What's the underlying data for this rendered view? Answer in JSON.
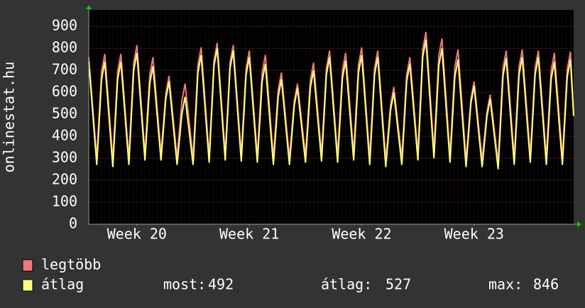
{
  "chart_data": {
    "type": "line",
    "ylabel": "onlinestat.hu",
    "x": [
      0,
      0.5,
      0.8,
      1,
      1.5,
      1.8,
      2,
      2.5,
      2.8,
      3,
      3.5,
      3.8,
      4,
      4.5,
      4.8,
      5,
      5.5,
      5.8,
      6,
      6.5,
      6.8,
      7,
      7.5,
      7.8,
      8,
      8.5,
      8.8,
      9,
      9.5,
      9.8,
      10,
      10.5,
      10.8,
      11,
      11.5,
      11.8,
      12,
      12.5,
      12.8,
      13,
      13.5,
      13.8,
      14,
      14.5,
      14.8,
      15,
      15.5,
      15.8,
      16,
      16.5,
      16.8,
      17,
      17.5,
      17.8,
      18,
      18.5,
      18.8,
      19,
      19.5,
      19.8,
      20,
      20.5,
      20.8,
      21,
      21.5,
      21.8,
      22,
      22.5,
      22.8,
      23,
      23.5,
      23.8,
      24,
      24.5,
      24.8,
      25,
      25.5,
      25.8,
      26,
      26.5,
      26.8,
      27,
      27.5,
      27.8,
      28,
      28.5,
      28.8,
      29,
      29.5,
      29.8,
      30,
      30.2
    ],
    "series": [
      {
        "name": "legtöbb",
        "color": "#f07878",
        "values": [
          760,
          300,
          695,
          775,
          290,
          695,
          775,
          300,
          735,
          815,
          320,
          680,
          760,
          320,
          595,
          675,
          300,
          560,
          640,
          300,
          725,
          805,
          310,
          745,
          825,
          320,
          735,
          815,
          315,
          710,
          790,
          310,
          690,
          770,
          300,
          610,
          690,
          300,
          560,
          640,
          310,
          655,
          735,
          315,
          710,
          790,
          310,
          700,
          780,
          320,
          725,
          805,
          300,
          710,
          790,
          290,
          545,
          625,
          300,
          680,
          760,
          320,
          795,
          875,
          330,
          765,
          845,
          310,
          715,
          795,
          290,
          570,
          650,
          290,
          510,
          590,
          280,
          710,
          790,
          300,
          715,
          795,
          310,
          710,
          790,
          300,
          700,
          780,
          300,
          705,
          785,
          500
        ]
      },
      {
        "name": "átlag",
        "color": "#ffff80",
        "values": [
          740,
          270,
          660,
          740,
          260,
          660,
          740,
          270,
          700,
          780,
          290,
          640,
          720,
          290,
          570,
          650,
          270,
          500,
          580,
          270,
          690,
          770,
          280,
          720,
          800,
          290,
          710,
          790,
          285,
          680,
          760,
          280,
          650,
          730,
          270,
          580,
          660,
          270,
          540,
          620,
          280,
          620,
          700,
          285,
          680,
          760,
          280,
          665,
          745,
          290,
          690,
          770,
          270,
          680,
          760,
          260,
          520,
          600,
          270,
          650,
          730,
          290,
          760,
          840,
          300,
          720,
          800,
          280,
          670,
          750,
          260,
          550,
          630,
          260,
          490,
          570,
          250,
          675,
          755,
          270,
          680,
          760,
          280,
          680,
          760,
          270,
          660,
          740,
          270,
          670,
          750,
          492
        ]
      }
    ],
    "xlim": [
      0,
      30.2
    ],
    "xticks": [
      {
        "value": 3,
        "label": "Week 20"
      },
      {
        "value": 10,
        "label": "Week 21"
      },
      {
        "value": 17,
        "label": "Week 22"
      },
      {
        "value": 24,
        "label": "Week 23"
      }
    ],
    "ylim": [
      0,
      975
    ],
    "yticks": [
      0,
      100,
      200,
      300,
      400,
      500,
      600,
      700,
      800,
      900
    ],
    "grid": true,
    "stats": [
      {
        "label": "most:",
        "value": 492
      },
      {
        "label": "átlag:",
        "value": 527
      },
      {
        "label": "max:",
        "value": 846
      }
    ]
  }
}
